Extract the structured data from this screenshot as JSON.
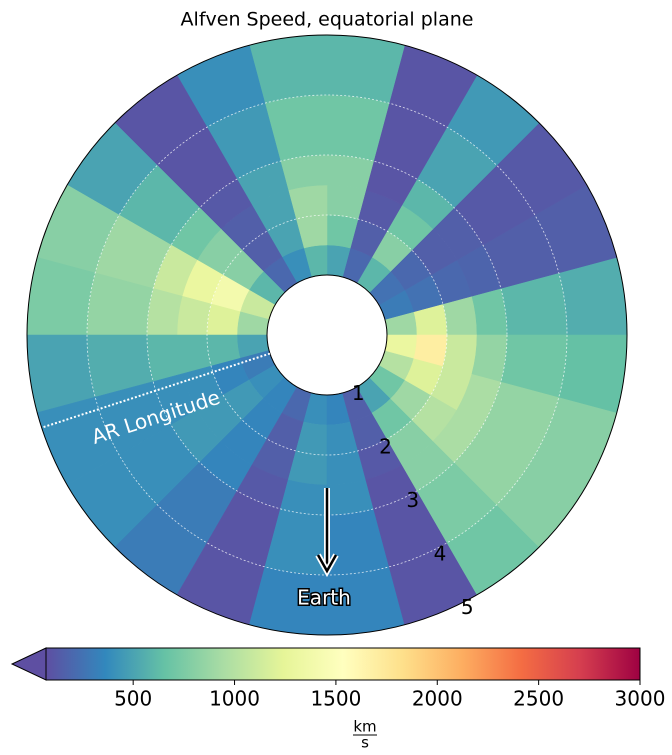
{
  "chart_data": {
    "type": "polar_heatmap",
    "title": "Alfven Speed, equatorial plane",
    "theta_edges": [
      0,
      15,
      30,
      45,
      60,
      75,
      90,
      105,
      120,
      135,
      150,
      165,
      180,
      195,
      210,
      225,
      240,
      255,
      270,
      285,
      300,
      315,
      330,
      345,
      360
    ],
    "r_edges": [
      1,
      1.5,
      2,
      2.5,
      3,
      4,
      5
    ],
    "values": [
      [
        900,
        1200,
        900,
        700,
        600,
        550
      ],
      [
        300,
        250,
        200,
        180,
        150,
        150
      ],
      [
        250,
        200,
        150,
        150,
        120,
        120
      ],
      [
        600,
        800,
        700,
        600,
        500,
        450
      ],
      [
        200,
        150,
        120,
        100,
        100,
        100
      ],
      [
        500,
        700,
        800,
        800,
        700,
        600
      ],
      [
        600,
        900,
        900,
        800,
        700,
        600
      ],
      [
        400,
        500,
        500,
        500,
        450,
        400
      ],
      [
        200,
        150,
        150,
        120,
        100,
        100
      ],
      [
        600,
        800,
        800,
        700,
        600,
        500
      ],
      [
        1100,
        1400,
        1300,
        1100,
        900,
        800
      ],
      [
        900,
        1200,
        1100,
        1000,
        850,
        750
      ],
      [
        500,
        600,
        600,
        600,
        550,
        500
      ],
      [
        300,
        350,
        400,
        400,
        400,
        400
      ],
      [
        400,
        450,
        450,
        450,
        400,
        400
      ],
      [
        350,
        350,
        350,
        350,
        300,
        300
      ],
      [
        200,
        150,
        150,
        120,
        100,
        100
      ],
      [
        400,
        450,
        450,
        400,
        400,
        350
      ],
      [
        350,
        400,
        400,
        400,
        350,
        350
      ],
      [
        150,
        150,
        120,
        100,
        100,
        100
      ],
      [
        500,
        700,
        800,
        800,
        750,
        700
      ],
      [
        700,
        900,
        1000,
        950,
        850,
        800
      ],
      [
        1000,
        1200,
        1100,
        950,
        850,
        800
      ],
      [
        1300,
        1700,
        1100,
        850,
        700,
        650
      ]
    ],
    "rlim": [
      1,
      5
    ],
    "rticks": [
      1,
      2,
      3,
      4,
      5
    ],
    "rtick_angle": -63,
    "grid": true,
    "colormap": [
      "#5e4fa2",
      "#3288bd",
      "#66c2a5",
      "#abdda4",
      "#e6f598",
      "#ffffbf",
      "#fee08b",
      "#fdae61",
      "#f46d43",
      "#d53e4f",
      "#9e0142"
    ],
    "clim": [
      70,
      3000
    ],
    "cticks": [
      500,
      1000,
      1500,
      2000,
      2500,
      3000
    ],
    "colorbar_label": {
      "numerator": "km",
      "denominator": "s"
    },
    "annotations": {
      "ar_longitude": {
        "text": "AR Longitude",
        "angle": 198
      },
      "earth": {
        "text": "Earth",
        "angle": 270
      }
    }
  }
}
